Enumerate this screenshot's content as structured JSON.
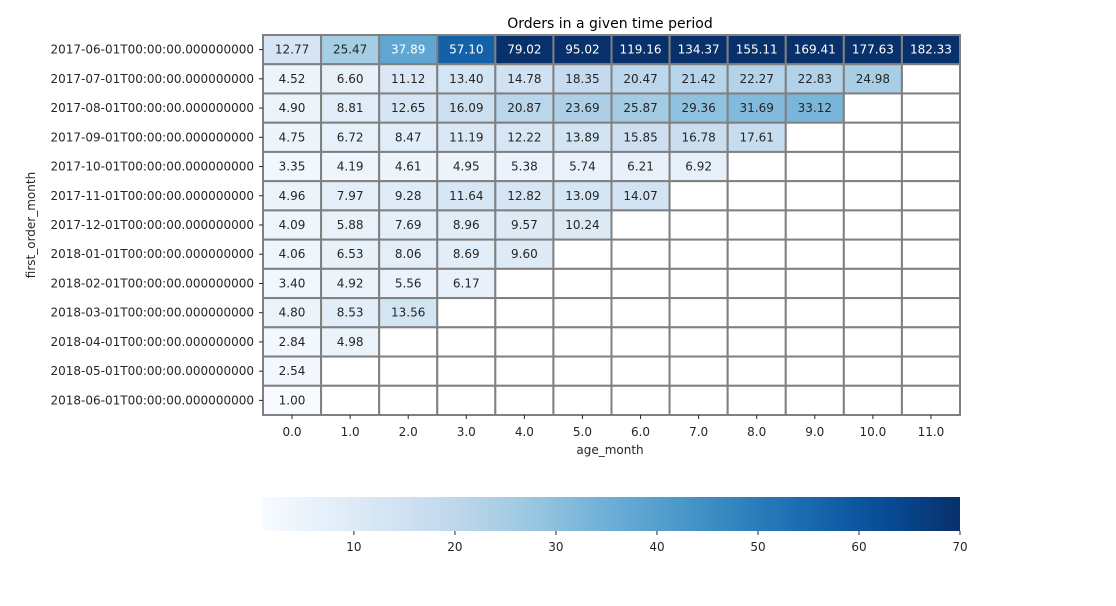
{
  "chart_data": {
    "type": "heatmap",
    "title": "Orders in a given time period",
    "xlabel": "age_month",
    "ylabel": "first_order_month",
    "x": [
      "0.0",
      "1.0",
      "2.0",
      "3.0",
      "4.0",
      "5.0",
      "6.0",
      "7.0",
      "8.0",
      "9.0",
      "10.0",
      "11.0"
    ],
    "y": [
      "2017-06-01T00:00:00.000000000",
      "2017-07-01T00:00:00.000000000",
      "2017-08-01T00:00:00.000000000",
      "2017-09-01T00:00:00.000000000",
      "2017-10-01T00:00:00.000000000",
      "2017-11-01T00:00:00.000000000",
      "2017-12-01T00:00:00.000000000",
      "2018-01-01T00:00:00.000000000",
      "2018-02-01T00:00:00.000000000",
      "2018-03-01T00:00:00.000000000",
      "2018-04-01T00:00:00.000000000",
      "2018-05-01T00:00:00.000000000",
      "2018-06-01T00:00:00.000000000"
    ],
    "values": [
      [
        12.77,
        25.47,
        37.89,
        57.1,
        79.02,
        95.02,
        119.16,
        134.37,
        155.11,
        169.41,
        177.63,
        182.33
      ],
      [
        4.52,
        6.6,
        11.12,
        13.4,
        14.78,
        18.35,
        20.47,
        21.42,
        22.27,
        22.83,
        24.98,
        null
      ],
      [
        4.9,
        8.81,
        12.65,
        16.09,
        20.87,
        23.69,
        25.87,
        29.36,
        31.69,
        33.12,
        null,
        null
      ],
      [
        4.75,
        6.72,
        8.47,
        11.19,
        12.22,
        13.89,
        15.85,
        16.78,
        17.61,
        null,
        null,
        null
      ],
      [
        3.35,
        4.19,
        4.61,
        4.95,
        5.38,
        5.74,
        6.21,
        6.92,
        null,
        null,
        null,
        null
      ],
      [
        4.96,
        7.97,
        9.28,
        11.64,
        12.82,
        13.09,
        14.07,
        null,
        null,
        null,
        null,
        null
      ],
      [
        4.09,
        5.88,
        7.69,
        8.96,
        9.57,
        10.24,
        null,
        null,
        null,
        null,
        null,
        null
      ],
      [
        4.06,
        6.53,
        8.06,
        8.69,
        9.6,
        null,
        null,
        null,
        null,
        null,
        null,
        null
      ],
      [
        3.4,
        4.92,
        5.56,
        6.17,
        null,
        null,
        null,
        null,
        null,
        null,
        null,
        null
      ],
      [
        4.8,
        8.53,
        13.56,
        null,
        null,
        null,
        null,
        null,
        null,
        null,
        null,
        null
      ],
      [
        2.84,
        4.98,
        null,
        null,
        null,
        null,
        null,
        null,
        null,
        null,
        null,
        null
      ],
      [
        2.54,
        null,
        null,
        null,
        null,
        null,
        null,
        null,
        null,
        null,
        null,
        null
      ],
      [
        1.0,
        null,
        null,
        null,
        null,
        null,
        null,
        null,
        null,
        null,
        null,
        null
      ]
    ],
    "colormap": "Blues",
    "color_range": [
      1.0,
      70
    ],
    "colorbar": {
      "orientation": "horizontal",
      "placement": "bottom",
      "ticks": [
        10,
        20,
        30,
        40,
        50,
        60,
        70
      ]
    },
    "cell_border_color": "#808080"
  }
}
